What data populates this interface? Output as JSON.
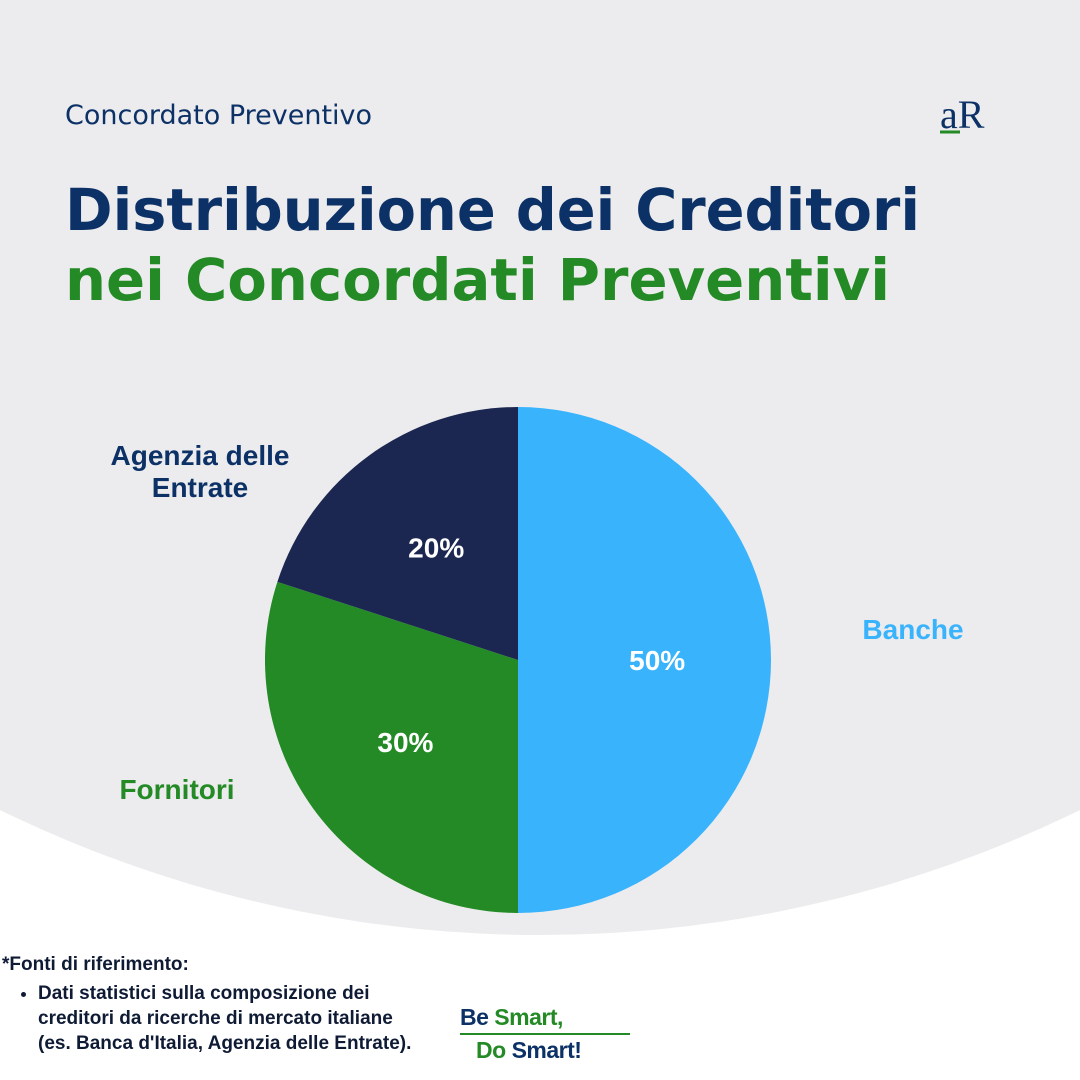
{
  "header": "Concordato Preventivo",
  "logo": "aR",
  "chart_data": {
    "type": "pie",
    "title": "Distribuzione dei Creditori",
    "subtitle": "nei Concordati Preventivi",
    "categories": [
      "Banche",
      "Fornitori",
      "Agenzia delle Entrate"
    ],
    "values": [
      50,
      30,
      20
    ],
    "value_labels": [
      "50%",
      "30%",
      "20%"
    ],
    "colors": [
      "#3ab3fd",
      "#238a26",
      "#1b2750"
    ]
  },
  "footnote": {
    "title": "*Fonti di riferimento:",
    "items": [
      "Dati statistici sulla composizione dei creditori da ricerche di mercato italiane (es. Banca d'Italia, Agenzia delle Entrate)."
    ]
  },
  "slogan": {
    "line1": [
      "Be",
      "Smart,"
    ],
    "line2": [
      "Do",
      "Smart!"
    ]
  }
}
